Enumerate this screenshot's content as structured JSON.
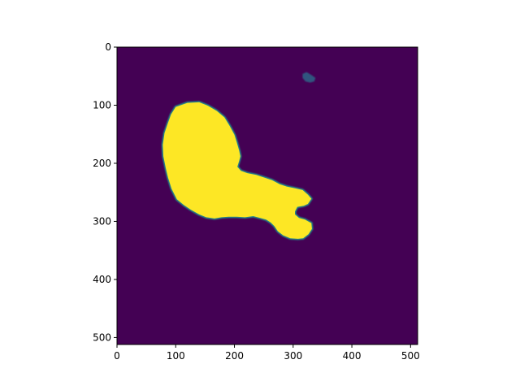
{
  "chart_data": {
    "type": "heatmap",
    "title": "",
    "xlabel": "",
    "ylabel": "",
    "colormap": "viridis",
    "image_size": [
      512,
      512
    ],
    "xlim": [
      0,
      512
    ],
    "ylim": [
      512,
      0
    ],
    "xticks": [
      0,
      100,
      200,
      300,
      400,
      500
    ],
    "yticks": [
      0,
      100,
      200,
      300,
      400,
      500
    ],
    "xtick_labels": [
      "0",
      "100",
      "200",
      "300",
      "400",
      "500"
    ],
    "ytick_labels": [
      "0",
      "100",
      "200",
      "300",
      "400",
      "500"
    ],
    "grid": false,
    "colors": {
      "background": "#440154",
      "foreground": "#fde725",
      "edge": "#21918c",
      "edge_dark": "#2c728e"
    },
    "regions": [
      {
        "value": 1,
        "outline": [
          [
            100,
            103
          ],
          [
            120,
            96
          ],
          [
            140,
            95
          ],
          [
            155,
            101
          ],
          [
            170,
            110
          ],
          [
            183,
            121
          ],
          [
            192,
            136
          ],
          [
            200,
            151
          ],
          [
            204,
            164
          ],
          [
            208,
            178
          ],
          [
            210,
            188
          ],
          [
            208,
            196
          ],
          [
            205,
            206
          ],
          [
            211,
            213
          ],
          [
            222,
            217
          ],
          [
            237,
            220
          ],
          [
            249,
            224
          ],
          [
            264,
            229
          ],
          [
            277,
            236
          ],
          [
            289,
            240
          ],
          [
            303,
            243
          ],
          [
            316,
            246
          ],
          [
            325,
            254
          ],
          [
            331,
            261
          ],
          [
            325,
            270
          ],
          [
            318,
            273
          ],
          [
            307,
            275
          ],
          [
            303,
            283
          ],
          [
            303,
            288
          ],
          [
            310,
            294
          ],
          [
            320,
            297
          ],
          [
            331,
            303
          ],
          [
            332,
            313
          ],
          [
            326,
            322
          ],
          [
            317,
            329
          ],
          [
            308,
            330
          ],
          [
            295,
            329
          ],
          [
            283,
            324
          ],
          [
            274,
            317
          ],
          [
            268,
            308
          ],
          [
            262,
            302
          ],
          [
            254,
            297
          ],
          [
            244,
            294
          ],
          [
            232,
            291
          ],
          [
            218,
            293
          ],
          [
            204,
            292
          ],
          [
            190,
            292
          ],
          [
            178,
            293
          ],
          [
            166,
            295
          ],
          [
            152,
            293
          ],
          [
            140,
            288
          ],
          [
            126,
            280
          ],
          [
            114,
            272
          ],
          [
            102,
            262
          ],
          [
            93,
            244
          ],
          [
            87,
            225
          ],
          [
            83,
            208
          ],
          [
            79,
            188
          ],
          [
            78,
            168
          ],
          [
            81,
            148
          ],
          [
            87,
            130
          ],
          [
            92,
            116
          ]
        ]
      },
      {
        "value": 0.5,
        "outline": [
          [
            316,
            46
          ],
          [
            323,
            43
          ],
          [
            331,
            48
          ],
          [
            338,
            53
          ],
          [
            336,
            59
          ],
          [
            329,
            61
          ],
          [
            321,
            59
          ],
          [
            316,
            53
          ]
        ]
      }
    ]
  }
}
